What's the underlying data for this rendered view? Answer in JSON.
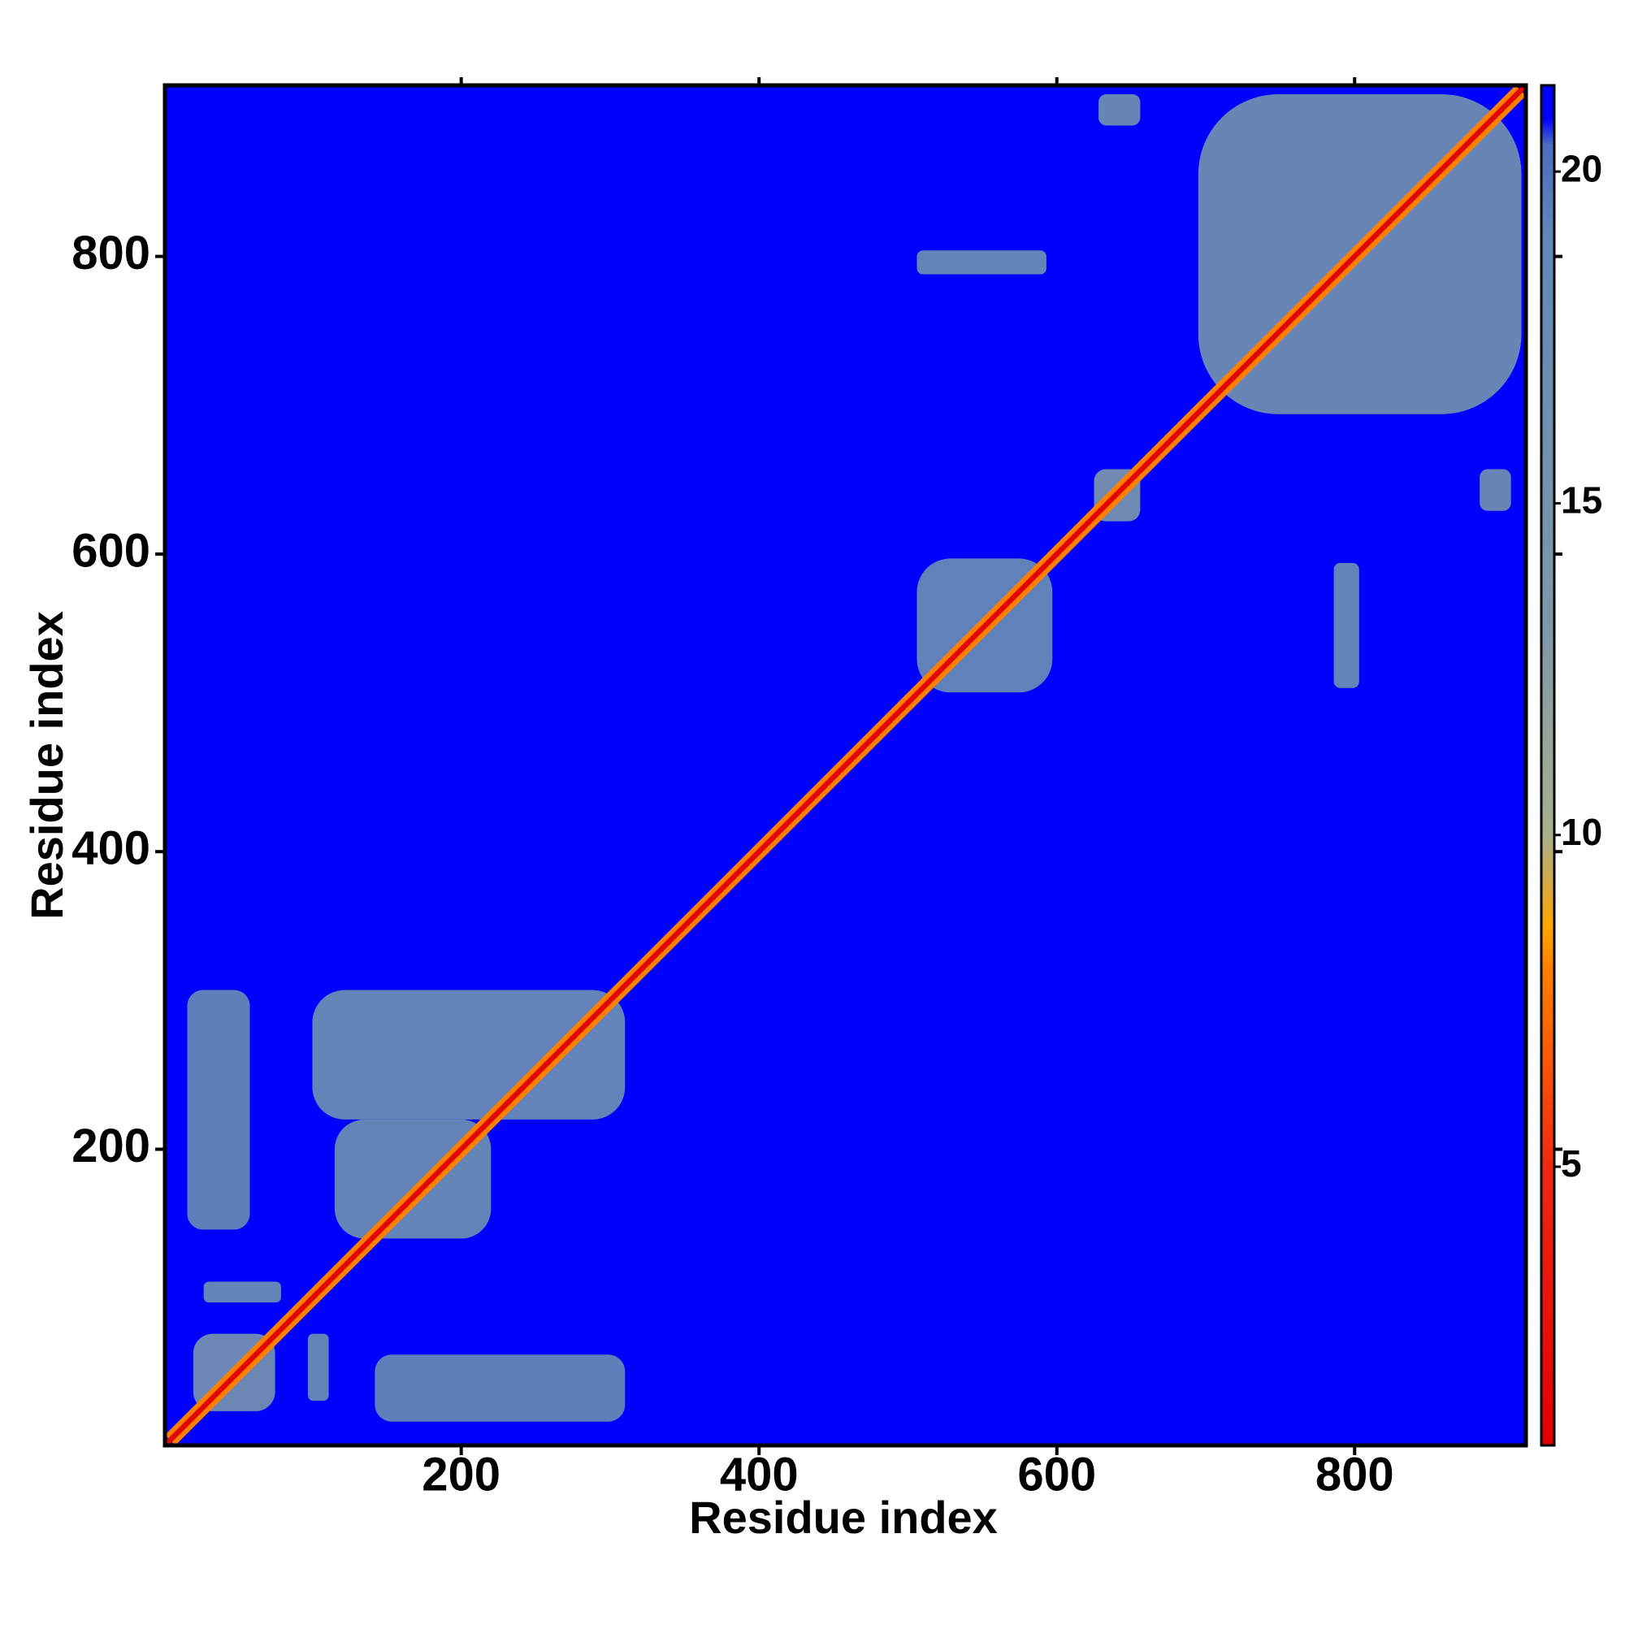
{
  "chart_data": {
    "type": "heatmap",
    "xlabel": "Residue index",
    "ylabel": "Residue index",
    "xlim": [
      1,
      915
    ],
    "ylim": [
      1,
      915
    ],
    "xticks": [
      200,
      400,
      600,
      800
    ],
    "yticks": [
      200,
      400,
      600,
      800
    ],
    "zlim": [
      0.8,
      21.3
    ],
    "zticks": [
      5,
      10,
      15,
      20
    ],
    "colorscale": [
      [
        0.8,
        "#e00000"
      ],
      [
        5,
        "#f02810"
      ],
      [
        8,
        "#ff8000"
      ],
      [
        8.6,
        "#ffa500"
      ],
      [
        10,
        "#a8b08c"
      ],
      [
        13,
        "#8099a8"
      ],
      [
        19,
        "#6088b8"
      ],
      [
        20.4,
        "#4a6ec0"
      ],
      [
        20.8,
        "#0000ff"
      ],
      [
        21.3,
        "#0000ff"
      ]
    ],
    "default_value": 21.3,
    "regions": [
      {
        "x": [
          695,
          912
        ],
        "y": [
          694,
          909
        ],
        "value": 16
      },
      {
        "x": [
          100,
          310
        ],
        "y": [
          220,
          307
        ],
        "value": 17
      },
      {
        "x": [
          115,
          220
        ],
        "y": [
          140,
          220
        ],
        "value": 16.5
      },
      {
        "x": [
          16,
          58
        ],
        "y": [
          146,
          307
        ],
        "value": 18
      },
      {
        "x": [
          20,
          75
        ],
        "y": [
          24,
          76
        ],
        "value": 15
      },
      {
        "x": [
          142,
          310
        ],
        "y": [
          17,
          62
        ],
        "value": 18
      },
      {
        "x": [
          27,
          79
        ],
        "y": [
          97,
          111
        ],
        "value": 17
      },
      {
        "x": [
          97,
          111
        ],
        "y": [
          31,
          76
        ],
        "value": 17
      },
      {
        "x": [
          506,
          597
        ],
        "y": [
          507,
          597
        ],
        "value": 17.5
      },
      {
        "x": [
          506,
          593
        ],
        "y": [
          788,
          804
        ],
        "value": 17
      },
      {
        "x": [
          786,
          803
        ],
        "y": [
          510,
          594
        ],
        "value": 17
      },
      {
        "x": [
          628,
          656
        ],
        "y": [
          888,
          909
        ],
        "value": 16
      },
      {
        "x": [
          884,
          905
        ],
        "y": [
          629,
          657
        ],
        "value": 16
      },
      {
        "x": [
          625,
          656
        ],
        "y": [
          622,
          657
        ],
        "value": 14
      }
    ],
    "diagonal": [
      {
        "offset": 7,
        "value": 8
      },
      {
        "offset": 2.5,
        "value": 1.5
      }
    ]
  }
}
